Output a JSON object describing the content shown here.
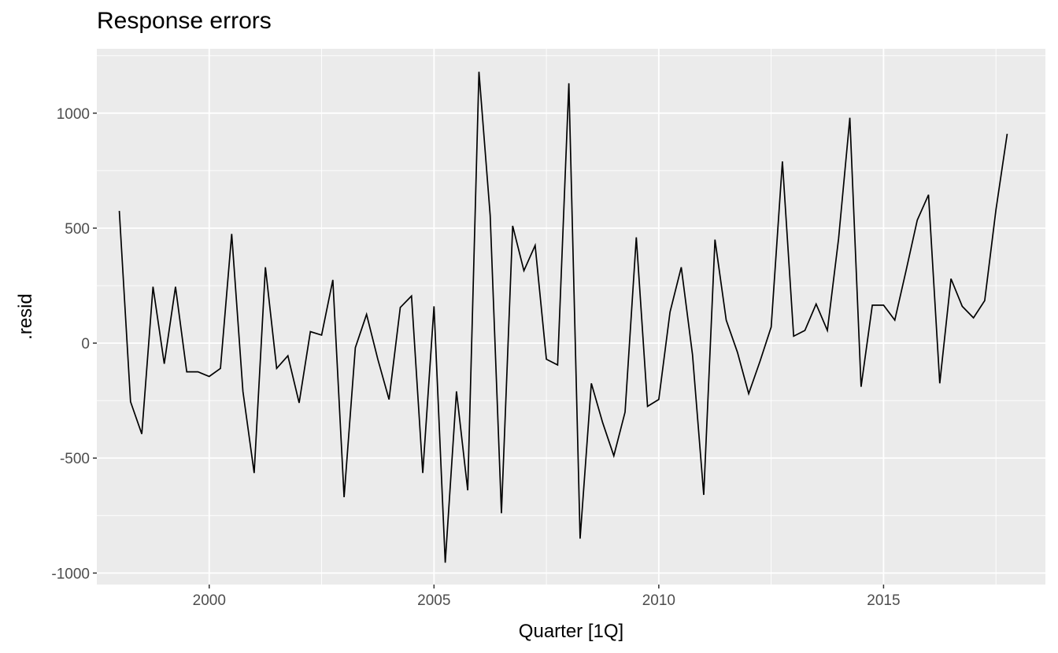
{
  "chart_data": {
    "type": "line",
    "title": "Response errors",
    "xlabel": "Quarter [1Q]",
    "ylabel": ".resid",
    "xlim": [
      1997.5,
      2018.6
    ],
    "ylim": [
      -1050,
      1280
    ],
    "x_ticks": [
      2000,
      2005,
      2010,
      2015
    ],
    "y_ticks": [
      -1000,
      -500,
      0,
      500,
      1000
    ],
    "y_tick_labels": [
      "-1000",
      "-500",
      "0",
      "500",
      "1000"
    ],
    "grid": true,
    "colors": {
      "panel": "#ebebeb",
      "grid_major": "#ffffff",
      "line": "#000000"
    },
    "series": [
      {
        "x": [
          1998.0,
          1998.25,
          1998.5,
          1998.75,
          1999.0,
          1999.25,
          1999.5,
          1999.75,
          2000.0,
          2000.25,
          2000.5,
          2000.75,
          2001.0,
          2001.25,
          2001.5,
          2001.75,
          2002.0,
          2002.25,
          2002.5,
          2002.75,
          2003.0,
          2003.25,
          2003.5,
          2003.75,
          2004.0,
          2004.25,
          2004.5,
          2004.75,
          2005.0,
          2005.25,
          2005.5,
          2005.75,
          2006.0,
          2006.25,
          2006.5,
          2006.75,
          2007.0,
          2007.25,
          2007.5,
          2007.75,
          2008.0,
          2008.25,
          2008.5,
          2008.75,
          2009.0,
          2009.25,
          2009.5,
          2009.75,
          2010.0,
          2010.25,
          2010.5,
          2010.75,
          2011.0,
          2011.25,
          2011.5,
          2011.75,
          2012.0,
          2012.25,
          2012.5,
          2012.75,
          2013.0,
          2013.25,
          2013.5,
          2013.75,
          2014.0,
          2014.25,
          2014.5,
          2014.75,
          2015.0,
          2015.25,
          2015.5,
          2015.75,
          2016.0,
          2016.25,
          2016.5,
          2016.75,
          2017.0,
          2017.25,
          2017.5,
          2017.75
        ],
        "values": [
          575,
          -255,
          -395,
          245,
          -90,
          245,
          -125,
          -125,
          -145,
          -110,
          475,
          -210,
          -565,
          330,
          -110,
          -55,
          -260,
          50,
          35,
          275,
          -670,
          -20,
          125,
          -70,
          -245,
          155,
          205,
          -565,
          160,
          -955,
          -210,
          -640,
          1180,
          555,
          -740,
          510,
          315,
          425,
          -70,
          -95,
          1130,
          -850,
          -175,
          -345,
          -490,
          -300,
          460,
          -275,
          -245,
          135,
          330,
          -50,
          -660,
          450,
          100,
          -40,
          -220,
          -80,
          70,
          790,
          30,
          55,
          170,
          55,
          455,
          980,
          -190,
          165,
          165,
          100,
          315,
          535,
          645,
          -175,
          280,
          160,
          110,
          185,
          580,
          910
        ]
      }
    ]
  }
}
